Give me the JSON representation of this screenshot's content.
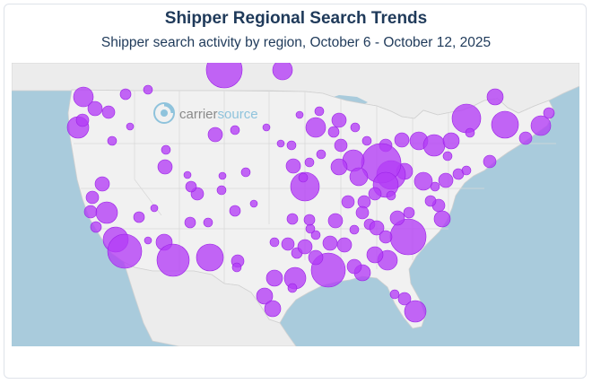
{
  "header": {
    "title": "Shipper Regional Search Trends",
    "subtitle": "Shipper search activity by region, October 6 - October 12, 2025"
  },
  "watermark": {
    "text_part1": "carrier",
    "text_part2": "source",
    "icon": "carriersource-logo-icon"
  },
  "colors": {
    "water": "#a9cbdc",
    "land": "#efefef",
    "border": "#c9c9c9",
    "bubble_fill": "#b43cf6",
    "bubble_stroke": "#9a20e6",
    "title": "#1f3a5a",
    "watermark": "#8fc3dc"
  },
  "bubbles": [
    [
      250,
      78,
      20
    ],
    [
      315,
      78,
      11
    ],
    [
      93,
      108,
      11
    ],
    [
      140,
      105,
      6
    ],
    [
      165,
      100,
      5
    ],
    [
      106,
      121,
      8
    ],
    [
      121,
      125,
      7
    ],
    [
      87,
      142,
      12
    ],
    [
      92,
      134,
      7
    ],
    [
      125,
      157,
      5
    ],
    [
      145,
      141,
      4
    ],
    [
      185,
      167,
      5
    ],
    [
      184,
      186,
      8
    ],
    [
      209,
      195,
      4
    ],
    [
      240,
      150,
      8
    ],
    [
      262,
      145,
      5
    ],
    [
      297,
      142,
      4
    ],
    [
      334,
      128,
      4
    ],
    [
      352,
      142,
      11
    ],
    [
      378,
      134,
      8
    ],
    [
      372,
      147,
      6
    ],
    [
      356,
      124,
      5
    ],
    [
      396,
      142,
      5
    ],
    [
      409,
      157,
      5
    ],
    [
      430,
      162,
      7
    ],
    [
      448,
      156,
      8
    ],
    [
      467,
      157,
      10
    ],
    [
      484,
      162,
      12
    ],
    [
      503,
      157,
      9
    ],
    [
      520,
      132,
      16
    ],
    [
      563,
      139,
      15
    ],
    [
      552,
      108,
      9
    ],
    [
      603,
      140,
      11
    ],
    [
      612,
      126,
      6
    ],
    [
      586,
      154,
      7
    ],
    [
      524,
      148,
      5
    ],
    [
      546,
      180,
      7
    ],
    [
      499,
      174,
      5
    ],
    [
      511,
      194,
      6
    ],
    [
      520,
      190,
      5
    ],
    [
      497,
      201,
      8
    ],
    [
      485,
      208,
      5
    ],
    [
      489,
      229,
      7
    ],
    [
      493,
      244,
      9
    ],
    [
      480,
      224,
      6
    ],
    [
      472,
      202,
      10
    ],
    [
      451,
      191,
      9
    ],
    [
      436,
      195,
      16
    ],
    [
      425,
      182,
      22
    ],
    [
      430,
      206,
      14
    ],
    [
      418,
      216,
      7
    ],
    [
      394,
      179,
      12
    ],
    [
      378,
      186,
      9
    ],
    [
      400,
      197,
      10
    ],
    [
      406,
      225,
      7
    ],
    [
      388,
      225,
      7
    ],
    [
      404,
      237,
      7
    ],
    [
      412,
      250,
      6
    ],
    [
      420,
      254,
      8
    ],
    [
      455,
      264,
      20
    ],
    [
      443,
      243,
      8
    ],
    [
      456,
      237,
      6
    ],
    [
      436,
      218,
      5
    ],
    [
      432,
      290,
      11
    ],
    [
      418,
      284,
      9
    ],
    [
      404,
      304,
      9
    ],
    [
      395,
      297,
      8
    ],
    [
      366,
      301,
      19
    ],
    [
      352,
      287,
      8
    ],
    [
      331,
      282,
      6
    ],
    [
      321,
      272,
      7
    ],
    [
      306,
      270,
      5
    ],
    [
      326,
      244,
      6
    ],
    [
      340,
      208,
      16
    ],
    [
      327,
      185,
      8
    ],
    [
      345,
      181,
      5
    ],
    [
      358,
      172,
      5
    ],
    [
      380,
      162,
      7
    ],
    [
      325,
      162,
      5
    ],
    [
      313,
      160,
      4
    ],
    [
      248,
      196,
      4
    ],
    [
      274,
      192,
      5
    ],
    [
      220,
      216,
      7
    ],
    [
      213,
      208,
      6
    ],
    [
      247,
      212,
      5
    ],
    [
      232,
      248,
      5
    ],
    [
      212,
      248,
      6
    ],
    [
      262,
      235,
      6
    ],
    [
      283,
      227,
      4
    ],
    [
      155,
      242,
      6
    ],
    [
      172,
      232,
      4
    ],
    [
      114,
      205,
      8
    ],
    [
      103,
      220,
      7
    ],
    [
      101,
      236,
      7
    ],
    [
      119,
      237,
      12
    ],
    [
      107,
      253,
      6
    ],
    [
      129,
      267,
      14
    ],
    [
      139,
      280,
      19
    ],
    [
      165,
      268,
      4
    ],
    [
      183,
      270,
      9
    ],
    [
      193,
      290,
      18
    ],
    [
      234,
      287,
      15
    ],
    [
      265,
      291,
      7
    ],
    [
      264,
      298,
      5
    ],
    [
      306,
      310,
      9
    ],
    [
      329,
      310,
      12
    ],
    [
      326,
      321,
      5
    ],
    [
      295,
      330,
      9
    ],
    [
      304,
      344,
      9
    ],
    [
      340,
      275,
      8
    ],
    [
      352,
      262,
      5
    ],
    [
      368,
      271,
      8
    ],
    [
      384,
      273,
      8
    ],
    [
      374,
      246,
      8
    ],
    [
      346,
      255,
      5
    ],
    [
      395,
      256,
      5
    ],
    [
      430,
      264,
      7
    ],
    [
      440,
      328,
      5
    ],
    [
      451,
      333,
      7
    ],
    [
      463,
      347,
      12
    ],
    [
      338,
      198,
      5
    ],
    [
      345,
      245,
      6
    ]
  ]
}
